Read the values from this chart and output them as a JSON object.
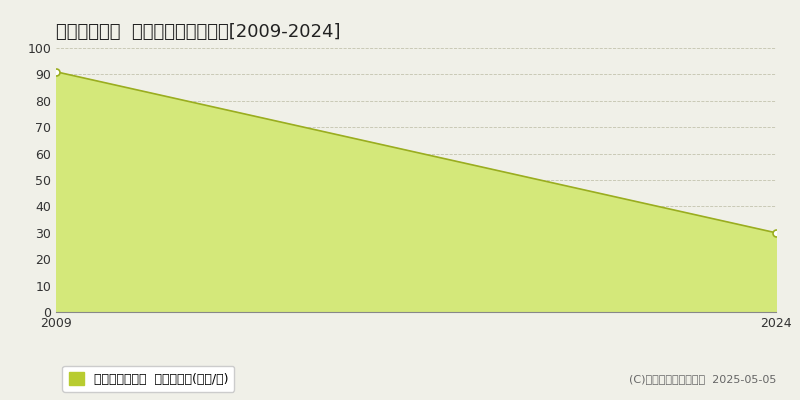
{
  "title": "長久手市平池  マンション価格推移[2009-2024]",
  "x_values": [
    2009,
    2024
  ],
  "y_values": [
    91,
    30
  ],
  "ylim": [
    0,
    100
  ],
  "xlim": [
    2009,
    2024
  ],
  "yticks": [
    0,
    10,
    20,
    30,
    40,
    50,
    60,
    70,
    80,
    90,
    100
  ],
  "xticks": [
    2009,
    2024
  ],
  "line_color": "#9aad20",
  "fill_color": "#d4e87a",
  "marker_color": "#9aad20",
  "marker_face": "white",
  "marker_size": 5,
  "grid_color": "#b8b8a0",
  "background_color": "#f0f0e8",
  "plot_bg_color": "#d4e87a",
  "legend_label": "マンション価格  平均坪単価(万円/坪)",
  "legend_square_color": "#b8cc30",
  "copyright_text": "(C)土地価格ドットコム  2025-05-05",
  "title_fontsize": 13,
  "tick_fontsize": 9,
  "legend_fontsize": 9,
  "copyright_fontsize": 8
}
